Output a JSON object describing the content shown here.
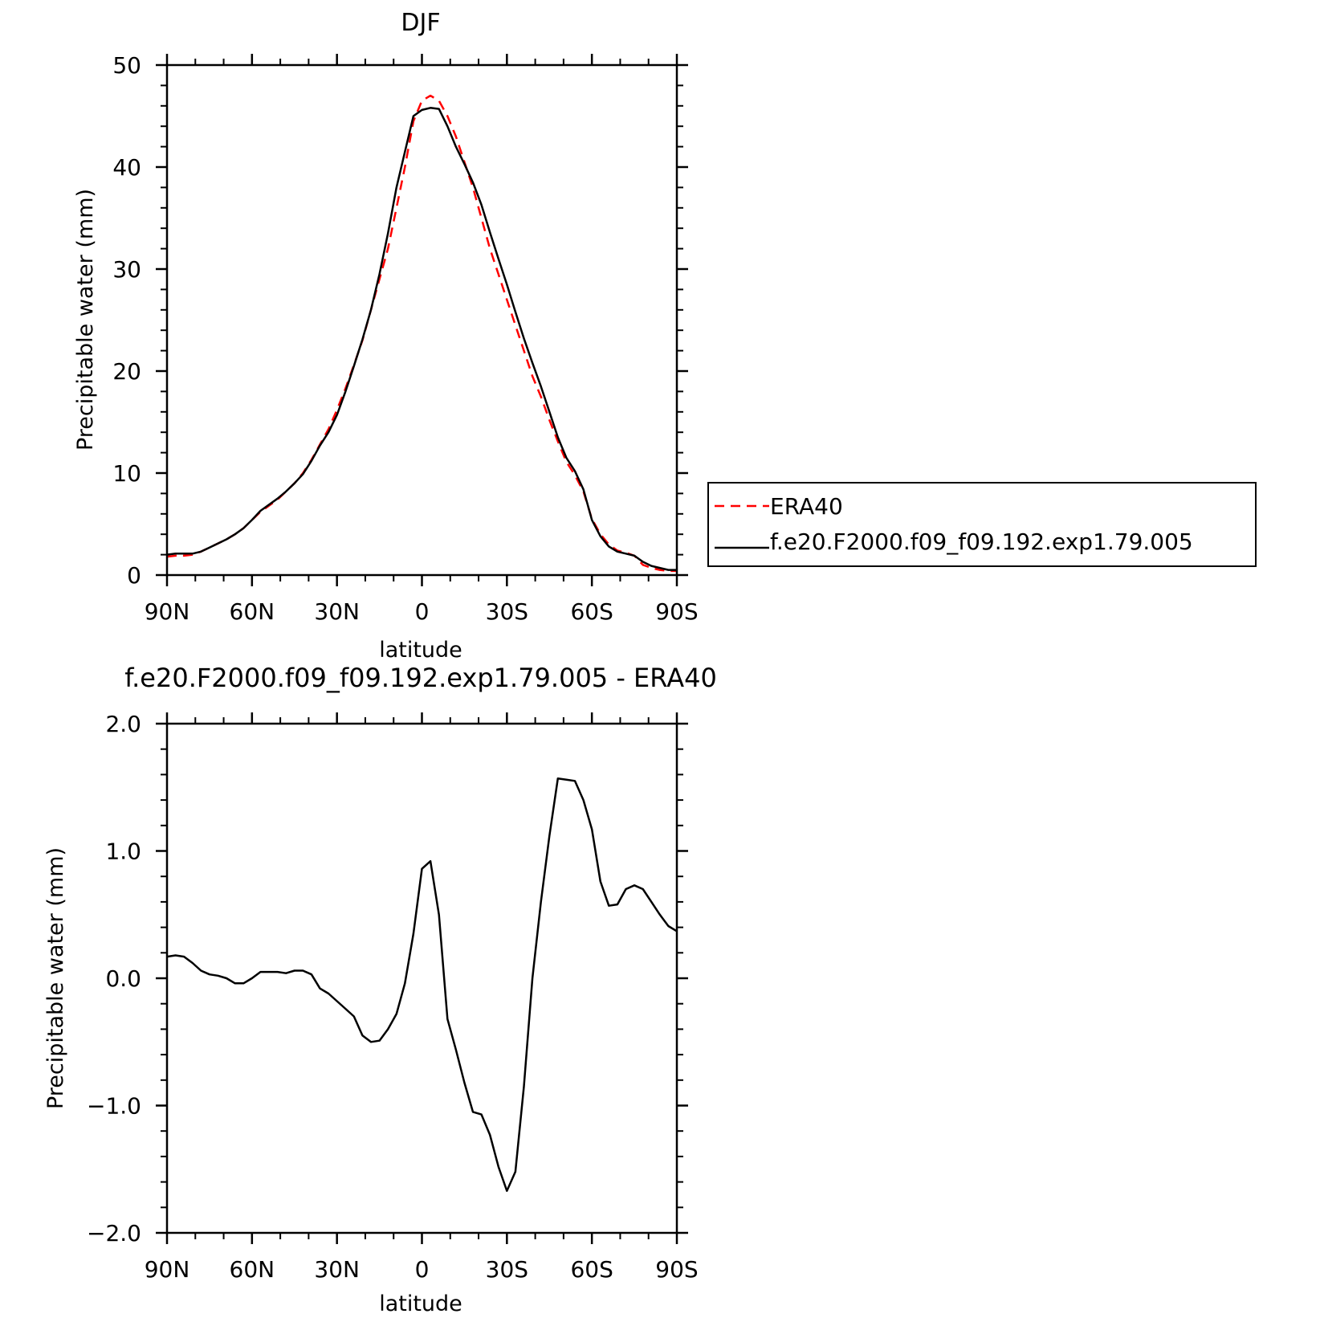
{
  "chart_data": [
    {
      "type": "line",
      "title": "DJF",
      "xlabel": "latitude",
      "ylabel": "Precipitable water (mm)",
      "xlim": [
        90,
        -90
      ],
      "ylim": [
        0,
        50
      ],
      "x_ticks": [
        90,
        60,
        30,
        0,
        -30,
        -60,
        -90
      ],
      "x_tick_labels": [
        "90N",
        "60N",
        "30N",
        "0",
        "30S",
        "60S",
        "90S"
      ],
      "y_ticks": [
        0,
        10,
        20,
        30,
        40,
        50
      ],
      "y_tick_labels": [
        "0",
        "10",
        "20",
        "30",
        "40",
        "50"
      ],
      "legend_position": "right",
      "series": [
        {
          "name": "ERA40",
          "color": "#ff0000",
          "dash": "dashed",
          "points": [
            [
              90,
              1.8
            ],
            [
              87,
              1.9
            ],
            [
              84,
              1.9
            ],
            [
              81,
              2.0
            ],
            [
              78,
              2.3
            ],
            [
              75,
              2.7
            ],
            [
              72,
              3.1
            ],
            [
              69,
              3.5
            ],
            [
              66,
              4.0
            ],
            [
              63,
              4.6
            ],
            [
              60,
              5.4
            ],
            [
              57,
              6.2
            ],
            [
              54,
              6.8
            ],
            [
              51,
              7.4
            ],
            [
              48,
              8.2
            ],
            [
              45,
              9.0
            ],
            [
              42,
              10.0
            ],
            [
              39,
              11.3
            ],
            [
              36,
              12.8
            ],
            [
              33,
              14.3
            ],
            [
              30,
              16.2
            ],
            [
              27,
              18.3
            ],
            [
              24,
              20.6
            ],
            [
              21,
              23.0
            ],
            [
              18,
              26.0
            ],
            [
              15,
              29.0
            ],
            [
              12,
              32.0
            ],
            [
              9,
              36.0
            ],
            [
              6,
              40.0
            ],
            [
              3,
              44.5
            ],
            [
              0,
              46.5
            ],
            [
              -3,
              47.0
            ],
            [
              -6,
              46.5
            ],
            [
              -9,
              45.0
            ],
            [
              -12,
              43.0
            ],
            [
              -15,
              40.5
            ],
            [
              -18,
              38.0
            ],
            [
              -21,
              35.0
            ],
            [
              -24,
              32.0
            ],
            [
              -27,
              29.5
            ],
            [
              -30,
              27.0
            ],
            [
              -33,
              24.5
            ],
            [
              -36,
              22.0
            ],
            [
              -39,
              19.5
            ],
            [
              -42,
              17.5
            ],
            [
              -45,
              15.2
            ],
            [
              -48,
              13.1
            ],
            [
              -51,
              11.1
            ],
            [
              -54,
              9.8
            ],
            [
              -57,
              8.2
            ],
            [
              -60,
              5.5
            ],
            [
              -63,
              4.0
            ],
            [
              -66,
              3.0
            ],
            [
              -69,
              2.4
            ],
            [
              -72,
              2.2
            ],
            [
              -75,
              1.9
            ],
            [
              -78,
              1.0
            ],
            [
              -81,
              0.7
            ],
            [
              -84,
              0.5
            ],
            [
              -87,
              0.4
            ],
            [
              -90,
              0.4
            ]
          ]
        },
        {
          "name": "f.e20.F2000.f09_f09.192.exp1.79.005",
          "color": "#000000",
          "dash": "solid",
          "points": [
            [
              90,
              2.0
            ],
            [
              87,
              2.1
            ],
            [
              84,
              2.1
            ],
            [
              81,
              2.1
            ],
            [
              78,
              2.3
            ],
            [
              75,
              2.7
            ],
            [
              72,
              3.1
            ],
            [
              69,
              3.5
            ],
            [
              66,
              4.0
            ],
            [
              63,
              4.6
            ],
            [
              60,
              5.4
            ],
            [
              57,
              6.3
            ],
            [
              54,
              6.9
            ],
            [
              51,
              7.5
            ],
            [
              48,
              8.2
            ],
            [
              45,
              9.0
            ],
            [
              42,
              9.9
            ],
            [
              39,
              11.2
            ],
            [
              36,
              12.7
            ],
            [
              33,
              14.0
            ],
            [
              30,
              15.7
            ],
            [
              27,
              18.0
            ],
            [
              24,
              20.5
            ],
            [
              21,
              23.1
            ],
            [
              18,
              26.0
            ],
            [
              15,
              29.5
            ],
            [
              12,
              33.5
            ],
            [
              9,
              38.0
            ],
            [
              6,
              41.5
            ],
            [
              3,
              45.0
            ],
            [
              0,
              45.6
            ],
            [
              -3,
              45.8
            ],
            [
              -6,
              45.7
            ],
            [
              -9,
              44.0
            ],
            [
              -12,
              42.0
            ],
            [
              -15,
              40.3
            ],
            [
              -18,
              38.5
            ],
            [
              -21,
              36.3
            ],
            [
              -24,
              33.6
            ],
            [
              -27,
              31.0
            ],
            [
              -30,
              28.5
            ],
            [
              -33,
              25.8
            ],
            [
              -36,
              23.2
            ],
            [
              -39,
              20.8
            ],
            [
              -42,
              18.5
            ],
            [
              -45,
              16.0
            ],
            [
              -48,
              13.5
            ],
            [
              -51,
              11.5
            ],
            [
              -54,
              10.2
            ],
            [
              -57,
              8.4
            ],
            [
              -60,
              5.4
            ],
            [
              -63,
              3.8
            ],
            [
              -66,
              2.8
            ],
            [
              -69,
              2.3
            ],
            [
              -72,
              2.1
            ],
            [
              -75,
              1.9
            ],
            [
              -78,
              1.3
            ],
            [
              -81,
              0.9
            ],
            [
              -84,
              0.7
            ],
            [
              -87,
              0.5
            ],
            [
              -90,
              0.5
            ]
          ]
        }
      ]
    },
    {
      "type": "line",
      "title": "f.e20.F2000.f09_f09.192.exp1.79.005 - ERA40",
      "xlabel": "latitude",
      "ylabel": "Precipitable water (mm)",
      "xlim": [
        90,
        -90
      ],
      "ylim": [
        -2.0,
        2.0
      ],
      "x_ticks": [
        90,
        60,
        30,
        0,
        -30,
        -60,
        -90
      ],
      "x_tick_labels": [
        "90N",
        "60N",
        "30N",
        "0",
        "30S",
        "60S",
        "90S"
      ],
      "y_ticks": [
        -2.0,
        -1.0,
        0.0,
        1.0,
        2.0
      ],
      "y_tick_labels": [
        "−2.0",
        "−1.0",
        "0.0",
        "1.0",
        "2.0"
      ],
      "series": [
        {
          "color": "#000000",
          "dash": "solid",
          "points": [
            [
              90,
              0.17
            ],
            [
              87,
              0.18
            ],
            [
              84,
              0.17
            ],
            [
              81,
              0.12
            ],
            [
              78,
              0.06
            ],
            [
              75,
              0.03
            ],
            [
              72,
              0.02
            ],
            [
              69,
              0.0
            ],
            [
              66,
              -0.04
            ],
            [
              63,
              -0.04
            ],
            [
              60,
              0.0
            ],
            [
              57,
              0.05
            ],
            [
              54,
              0.05
            ],
            [
              51,
              0.05
            ],
            [
              48,
              0.04
            ],
            [
              45,
              0.06
            ],
            [
              42,
              0.06
            ],
            [
              39,
              0.03
            ],
            [
              36,
              -0.08
            ],
            [
              33,
              -0.12
            ],
            [
              30,
              -0.18
            ],
            [
              27,
              -0.24
            ],
            [
              24,
              -0.3
            ],
            [
              21,
              -0.45
            ],
            [
              18,
              -0.5
            ],
            [
              15,
              -0.49
            ],
            [
              12,
              -0.4
            ],
            [
              9,
              -0.28
            ],
            [
              6,
              -0.04
            ],
            [
              3,
              0.35
            ],
            [
              0,
              0.86
            ],
            [
              -3,
              0.92
            ],
            [
              -6,
              0.5
            ],
            [
              -9,
              -0.32
            ],
            [
              -12,
              -0.56
            ],
            [
              -15,
              -0.82
            ],
            [
              -18,
              -1.05
            ],
            [
              -21,
              -1.07
            ],
            [
              -24,
              -1.23
            ],
            [
              -27,
              -1.48
            ],
            [
              -30,
              -1.67
            ],
            [
              -33,
              -1.52
            ],
            [
              -36,
              -0.85
            ],
            [
              -39,
              0.0
            ],
            [
              -42,
              0.6
            ],
            [
              -45,
              1.12
            ],
            [
              -48,
              1.57
            ],
            [
              -51,
              1.56
            ],
            [
              -54,
              1.55
            ],
            [
              -57,
              1.4
            ],
            [
              -60,
              1.17
            ],
            [
              -63,
              0.76
            ],
            [
              -66,
              0.57
            ],
            [
              -69,
              0.58
            ],
            [
              -72,
              0.7
            ],
            [
              -75,
              0.73
            ],
            [
              -78,
              0.7
            ],
            [
              -81,
              0.6
            ],
            [
              -84,
              0.5
            ],
            [
              -87,
              0.41
            ],
            [
              -90,
              0.37
            ]
          ]
        }
      ]
    }
  ]
}
